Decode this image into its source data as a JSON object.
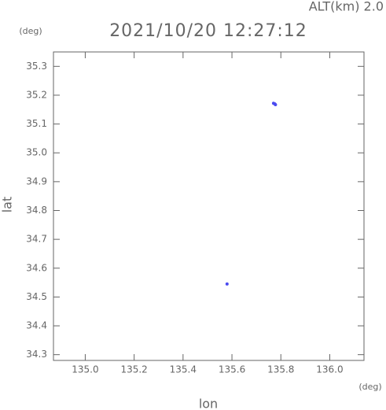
{
  "chart_data": {
    "type": "scatter",
    "title": "2021/10/20 12:27:12",
    "annotation": "ALT(km) 2.0",
    "x_unit": "(deg)",
    "y_unit": "(deg)",
    "xlabel": "lon",
    "ylabel": "lat",
    "series": [
      {
        "color": "#4a4af0",
        "x": [
          135.77,
          135.775,
          135.778,
          135.58
        ],
        "y": [
          35.172,
          35.17,
          35.167,
          34.545
        ]
      }
    ],
    "xlim": [
      134.87,
      136.14
    ],
    "ylim": [
      34.28,
      35.35
    ],
    "xticks": [
      {
        "value": 135.0,
        "label": "135.0"
      },
      135.2,
      135.4,
      135.6,
      135.8,
      {
        "value": 136.0,
        "label": "136.0"
      }
    ],
    "yticks": [
      34.3,
      34.4,
      34.5,
      34.6,
      34.7,
      34.8,
      34.9,
      {
        "value": 35.0,
        "label": "35.0"
      },
      35.1,
      35.2,
      35.3
    ]
  }
}
